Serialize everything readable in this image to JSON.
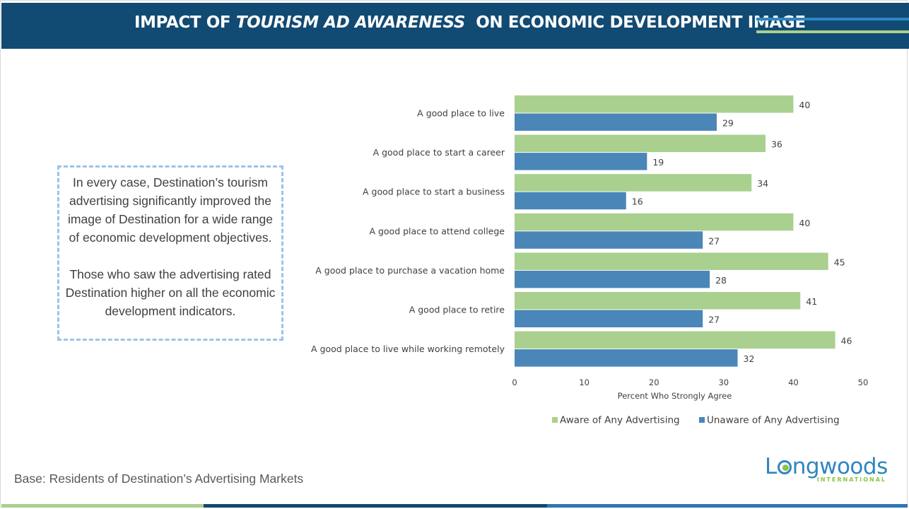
{
  "header": {
    "title_part1": "IMPACT OF ",
    "title_italic": "TOURISM AD AWARENESS",
    "title_part2": "  ON ECONOMIC DEVELOPMENT IMAGE"
  },
  "callout": {
    "paragraph1": "In every case, Destination’s tourism advertising significantly improved the image of Destination for a wide range of economic development objectives.",
    "paragraph2": "Those who saw the advertising rated Destination higher on all the economic development indicators."
  },
  "footer": {
    "base_note": "Base: Residents of Destination’s Advertising Markets"
  },
  "logo": {
    "word_start": "L",
    "word_end": "ngwoods",
    "subtitle": "INTERNATIONAL"
  },
  "colors": {
    "header_bg": "#114a73",
    "aware": "#a9d08e",
    "unaware": "#4a86b8"
  },
  "chart_data": {
    "type": "bar",
    "orientation": "horizontal",
    "categories": [
      "A good place to live",
      "A good place to start a career",
      "A good place to start a business",
      "A good place to attend college",
      "A good place to purchase a vacation home",
      "A good place to retire",
      "A good place to live while working remotely"
    ],
    "series": [
      {
        "name": "Aware of Any Advertising",
        "values": [
          40,
          36,
          34,
          40,
          45,
          41,
          46
        ]
      },
      {
        "name": "Unaware of Any Advertising",
        "values": [
          29,
          19,
          16,
          27,
          28,
          27,
          32
        ]
      }
    ],
    "xlabel": "Percent Who Strongly Agree",
    "xlim": [
      0,
      50
    ],
    "xticks": [
      0,
      10,
      20,
      30,
      40,
      50
    ],
    "legend_position": "bottom",
    "grid": false
  }
}
